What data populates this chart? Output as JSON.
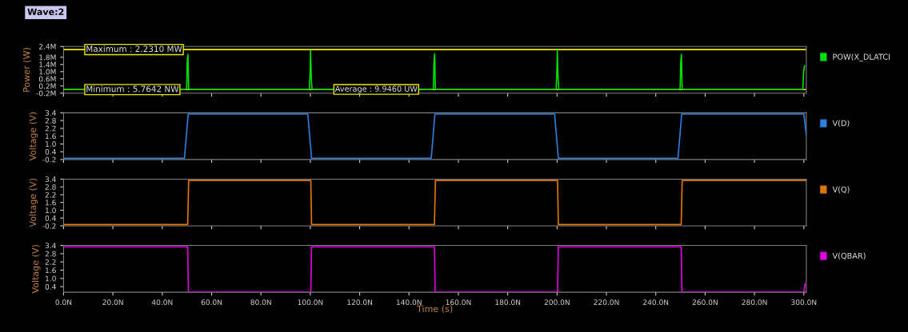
{
  "chart_data": [
    {
      "type": "line",
      "title": "Wave:2",
      "ylabel": "Power (W)",
      "tick_labels": "y",
      "legend": "right",
      "grid": false,
      "xlim": [
        0,
        301
      ],
      "xticks": [
        {
          "value": 0,
          "label": null
        },
        {
          "value": 20,
          "label": null
        },
        {
          "value": 40,
          "label": null
        },
        {
          "value": 60,
          "label": null
        },
        {
          "value": 80,
          "label": null
        },
        {
          "value": 100,
          "label": null
        },
        {
          "value": 120,
          "label": null
        },
        {
          "value": 140,
          "label": null
        },
        {
          "value": 160,
          "label": null
        },
        {
          "value": 180,
          "label": null
        },
        {
          "value": 200,
          "label": null
        },
        {
          "value": 220,
          "label": null
        },
        {
          "value": 240,
          "label": null
        },
        {
          "value": 260,
          "label": null
        },
        {
          "value": 280,
          "label": null
        },
        {
          "value": 300,
          "label": null
        }
      ],
      "ylim": [
        -0.2,
        2.4
      ],
      "yticks": [
        {
          "value": -0.2,
          "label": "-0.2M"
        },
        {
          "value": 0.2,
          "label": "0.2M"
        },
        {
          "value": 0.6,
          "label": "0.6M"
        },
        {
          "value": 1.0,
          "label": "1.0M"
        },
        {
          "value": 1.4,
          "label": "1.4M"
        },
        {
          "value": 1.8,
          "label": "1.8M"
        },
        {
          "value": 2.4,
          "label": "2.4M"
        }
      ],
      "ref_lines": [
        {
          "axis": "y",
          "value": 2.231,
          "label": "Maximum : 2.2310 MW",
          "color": "#e8e800"
        },
        {
          "axis": "y",
          "value": 5.7642e-06,
          "label": "Minimum : 5.7642 NW",
          "color": "#e8e800"
        }
      ],
      "annotations": [
        {
          "text": "Average : 9.9460 UW",
          "x": 110,
          "y": 0.009946
        }
      ],
      "series": [
        {
          "name": "POW(X_DLATCI",
          "color": "#00e000",
          "x": [
            0,
            49.6,
            49.9,
            50.1,
            50.4,
            50.7,
            99.6,
            99.9,
            100.1,
            100.4,
            100.7,
            149.6,
            149.9,
            150.1,
            150.4,
            150.7,
            199.6,
            199.9,
            200.1,
            200.4,
            200.7,
            249.6,
            249.9,
            250.1,
            250.4,
            250.7,
            299.6,
            299.9,
            300.3
          ],
          "values": [
            0,
            0,
            0.1,
            1.5,
            1.96,
            0,
            0,
            0.9,
            2.16,
            0.6,
            0,
            0,
            0.1,
            1.5,
            2.0,
            0,
            0,
            0.9,
            2.2,
            0.6,
            0,
            0,
            0.1,
            1.5,
            1.96,
            0,
            0,
            1.0,
            1.32
          ]
        }
      ]
    },
    {
      "type": "line",
      "ylabel": "Voltage (V)",
      "tick_labels": "y",
      "legend": "right",
      "grid": false,
      "xlim": [
        0,
        301
      ],
      "xticks": [
        {
          "value": 0,
          "label": null
        },
        {
          "value": 20,
          "label": null
        },
        {
          "value": 40,
          "label": null
        },
        {
          "value": 60,
          "label": null
        },
        {
          "value": 80,
          "label": null
        },
        {
          "value": 100,
          "label": null
        },
        {
          "value": 120,
          "label": null
        },
        {
          "value": 140,
          "label": null
        },
        {
          "value": 160,
          "label": null
        },
        {
          "value": 180,
          "label": null
        },
        {
          "value": 200,
          "label": null
        },
        {
          "value": 220,
          "label": null
        },
        {
          "value": 240,
          "label": null
        },
        {
          "value": 260,
          "label": null
        },
        {
          "value": 280,
          "label": null
        },
        {
          "value": 300,
          "label": null
        }
      ],
      "ylim": [
        -0.2,
        3.4
      ],
      "yticks": [
        {
          "value": -0.2,
          "label": "-0.2"
        },
        0.4,
        {
          "value": 1.0,
          "label": "1.0"
        },
        1.6,
        2.2,
        2.8,
        3.4
      ],
      "series": [
        {
          "name": "V(D)",
          "color": "#2a7fe0",
          "x": [
            0,
            49,
            50.5,
            99,
            100.5,
            149,
            150.5,
            199,
            200.5,
            249,
            250.5,
            300,
            301
          ],
          "values": [
            -0.1,
            -0.1,
            3.3,
            3.3,
            -0.1,
            -0.1,
            3.3,
            3.3,
            -0.1,
            -0.1,
            3.3,
            3.3,
            1.7
          ]
        }
      ]
    },
    {
      "type": "line",
      "ylabel": "Voltage (V)",
      "tick_labels": "y",
      "legend": "right",
      "grid": false,
      "xlim": [
        0,
        301
      ],
      "xticks": [
        {
          "value": 0,
          "label": null
        },
        {
          "value": 20,
          "label": null
        },
        {
          "value": 40,
          "label": null
        },
        {
          "value": 60,
          "label": null
        },
        {
          "value": 80,
          "label": null
        },
        {
          "value": 100,
          "label": null
        },
        {
          "value": 120,
          "label": null
        },
        {
          "value": 140,
          "label": null
        },
        {
          "value": 160,
          "label": null
        },
        {
          "value": 180,
          "label": null
        },
        {
          "value": 200,
          "label": null
        },
        {
          "value": 220,
          "label": null
        },
        {
          "value": 240,
          "label": null
        },
        {
          "value": 260,
          "label": null
        },
        {
          "value": 280,
          "label": null
        },
        {
          "value": 300,
          "label": null
        }
      ],
      "ylim": [
        -0.2,
        3.4
      ],
      "yticks": [
        {
          "value": -0.2,
          "label": "-0.2"
        },
        0.4,
        {
          "value": 1.0,
          "label": "1.0"
        },
        1.6,
        2.2,
        2.8,
        3.4
      ],
      "series": [
        {
          "name": "V(Q)",
          "color": "#e07800",
          "x": [
            0,
            50.3,
            50.7,
            100.2,
            100.5,
            150.3,
            150.7,
            200.2,
            200.5,
            250.3,
            250.7,
            301
          ],
          "values": [
            -0.1,
            -0.1,
            3.3,
            3.3,
            -0.1,
            -0.1,
            3.3,
            3.3,
            -0.1,
            -0.1,
            3.3,
            3.3
          ]
        }
      ]
    },
    {
      "type": "line",
      "ylabel": "Voltage (V)",
      "xlabel": "Time (s)",
      "legend": "right",
      "grid": false,
      "xlim": [
        0,
        301
      ],
      "xticks": [
        {
          "value": 0,
          "label": "0.0N"
        },
        {
          "value": 20,
          "label": "20.0N"
        },
        {
          "value": 40,
          "label": "40.0N"
        },
        {
          "value": 60,
          "label": "60.0N"
        },
        {
          "value": 80,
          "label": "80.0N"
        },
        {
          "value": 100,
          "label": "100.0N"
        },
        {
          "value": 120,
          "label": "120.0N"
        },
        {
          "value": 140,
          "label": "140.0N"
        },
        {
          "value": 160,
          "label": "160.0N"
        },
        {
          "value": 180,
          "label": "180.0N"
        },
        {
          "value": 200,
          "label": "200.0N"
        },
        {
          "value": 220,
          "label": "220.0N"
        },
        {
          "value": 240,
          "label": "240.0N"
        },
        {
          "value": 260,
          "label": "260.0N"
        },
        {
          "value": 280,
          "label": "280.0N"
        },
        {
          "value": 300,
          "label": "300.0N"
        }
      ],
      "ylim": [
        0.0,
        3.4
      ],
      "yticks": [
        0.4,
        {
          "value": 1.0,
          "label": "1.0"
        },
        1.6,
        2.2,
        2.8,
        3.4
      ],
      "series": [
        {
          "name": "V(QBAR)",
          "color": "#e000e0",
          "x": [
            0,
            50.3,
            50.6,
            100.2,
            100.5,
            150.3,
            150.6,
            200.2,
            200.5,
            250.3,
            250.6,
            300,
            300.5
          ],
          "values": [
            3.3,
            3.3,
            0.0,
            0.0,
            3.3,
            3.3,
            0.0,
            0.0,
            3.3,
            3.3,
            0.0,
            0.0,
            0.6
          ]
        }
      ]
    }
  ]
}
